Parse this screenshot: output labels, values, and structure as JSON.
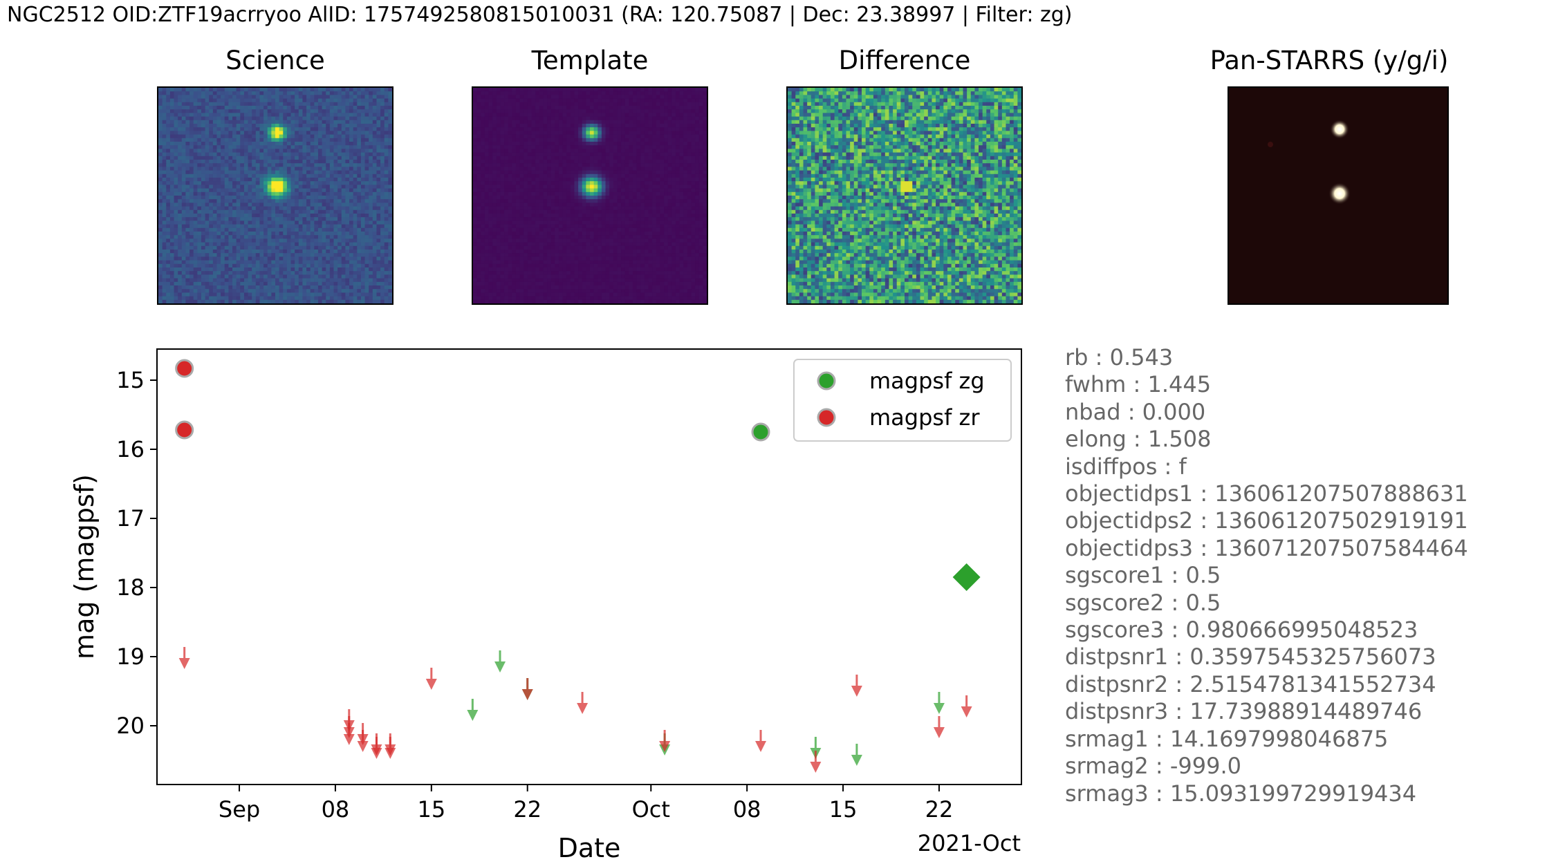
{
  "header": {
    "title": "NGC2512 OID:ZTF19acrryoo AlID: 1757492580815010031 (RA: 120.75087 | Dec: 23.38997 | Filter: zg)"
  },
  "stamps": [
    {
      "title": "Science",
      "colormap": "viridis"
    },
    {
      "title": "Template",
      "colormap": "viridis"
    },
    {
      "title": "Difference",
      "colormap": "viridis"
    },
    {
      "title": "Pan-STARRS (y/g/i)",
      "colormap": "rgb"
    }
  ],
  "stats": [
    "rb : 0.543",
    "fwhm : 1.445",
    "nbad : 0.000",
    "elong : 1.508",
    "isdiffpos : f",
    "objectidps1 : 136061207507888631",
    "objectidps2 : 136061207502919191",
    "objectidps3 : 136071207507584464",
    "sgscore1 : 0.5",
    "sgscore2 : 0.5",
    "sgscore3 : 0.980666995048523",
    "distpsnr1 : 0.3597545325756073",
    "distpsnr2 : 2.5154781341552734",
    "distpsnr3 : 17.73988914489746",
    "srmag1 : 14.1697998046875",
    "srmag2 : -999.0",
    "srmag3 : 15.093199729919434"
  ],
  "chart_data": {
    "type": "scatter",
    "xlabel": "Date",
    "ylabel": "mag (magpsf)",
    "x_offset_label": "2021-Oct",
    "xlim": [
      "2021-08-26",
      "2021-10-28"
    ],
    "ylim": [
      20.85,
      14.55
    ],
    "y_inverted": true,
    "x_ticks": [
      {
        "date": "2021-09-01",
        "label": "Sep"
      },
      {
        "date": "2021-09-08",
        "label": "08"
      },
      {
        "date": "2021-09-15",
        "label": "15"
      },
      {
        "date": "2021-09-22",
        "label": "22"
      },
      {
        "date": "2021-10-01",
        "label": "Oct"
      },
      {
        "date": "2021-10-08",
        "label": "08"
      },
      {
        "date": "2021-10-15",
        "label": "15"
      },
      {
        "date": "2021-10-22",
        "label": "22"
      }
    ],
    "y_ticks": [
      15,
      16,
      17,
      18,
      19,
      20
    ],
    "legend": {
      "position": "top-right",
      "entries": [
        "magpsf zg",
        "magpsf zr"
      ]
    },
    "colors": {
      "zg": "#2ca02c",
      "zr": "#d62728",
      "marker_edge": "#aaaaaa"
    },
    "series": [
      {
        "name": "magpsf zg",
        "color": "#2ca02c",
        "detections": [
          {
            "date": "2021-10-09",
            "mag": 15.75
          }
        ],
        "upper_limits": [
          {
            "date": "2021-09-18",
            "mag": 19.85
          },
          {
            "date": "2021-09-20",
            "mag": 19.15
          },
          {
            "date": "2021-09-22",
            "mag": 19.55
          },
          {
            "date": "2021-10-02",
            "mag": 20.35
          },
          {
            "date": "2021-10-13",
            "mag": 20.4
          },
          {
            "date": "2021-10-16",
            "mag": 20.5
          },
          {
            "date": "2021-10-22",
            "mag": 19.75
          }
        ],
        "current_alert": {
          "date": "2021-10-24",
          "mag": 17.85
        }
      },
      {
        "name": "magpsf zr",
        "color": "#d62728",
        "detections": [
          {
            "date": "2021-08-28",
            "mag": 14.83
          },
          {
            "date": "2021-08-28",
            "mag": 15.72
          }
        ],
        "upper_limits": [
          {
            "date": "2021-08-28",
            "mag": 19.1
          },
          {
            "date": "2021-09-09",
            "mag": 20.0
          },
          {
            "date": "2021-09-09",
            "mag": 20.1
          },
          {
            "date": "2021-09-09",
            "mag": 20.2
          },
          {
            "date": "2021-09-10",
            "mag": 20.2
          },
          {
            "date": "2021-09-10",
            "mag": 20.3
          },
          {
            "date": "2021-09-11",
            "mag": 20.35
          },
          {
            "date": "2021-09-11",
            "mag": 20.4
          },
          {
            "date": "2021-09-12",
            "mag": 20.4
          },
          {
            "date": "2021-09-12",
            "mag": 20.35
          },
          {
            "date": "2021-09-15",
            "mag": 19.4
          },
          {
            "date": "2021-09-22",
            "mag": 19.55
          },
          {
            "date": "2021-09-26",
            "mag": 19.75
          },
          {
            "date": "2021-10-02",
            "mag": 20.3
          },
          {
            "date": "2021-10-09",
            "mag": 20.3
          },
          {
            "date": "2021-10-13",
            "mag": 20.6
          },
          {
            "date": "2021-10-16",
            "mag": 19.5
          },
          {
            "date": "2021-10-22",
            "mag": 20.1
          },
          {
            "date": "2021-10-24",
            "mag": 19.8
          }
        ]
      }
    ]
  }
}
